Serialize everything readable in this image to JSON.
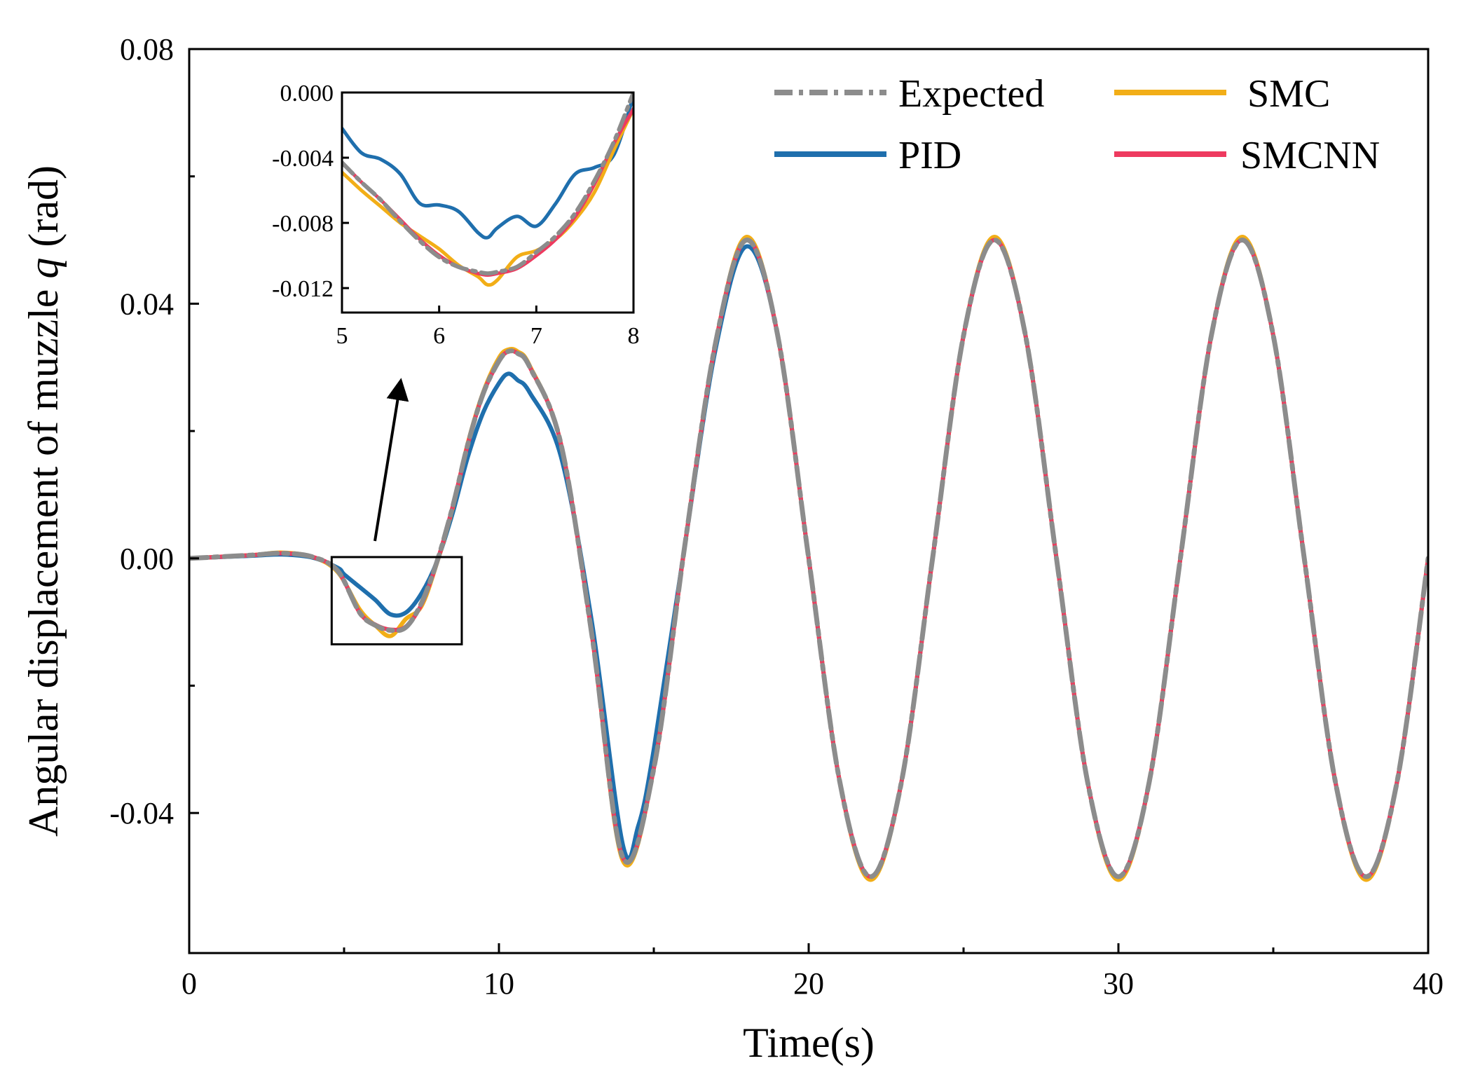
{
  "chart_data": {
    "type": "line",
    "title": "",
    "xlabel": "Time(s)",
    "ylabel": {
      "prefix": "Angular displacement of muzzle ",
      "symbol": "q",
      "suffix": " (rad)"
    },
    "xlim": [
      0,
      40
    ],
    "ylim": [
      -0.062,
      0.08
    ],
    "x_ticks": [
      0,
      10,
      20,
      30,
      40
    ],
    "x_tick_labels": [
      "0",
      "10",
      "20",
      "30",
      "40"
    ],
    "x_minor_ticks": [
      5,
      15,
      25,
      35
    ],
    "y_ticks": [
      -0.04,
      0.0,
      0.04,
      0.08
    ],
    "y_tick_labels": [
      "-0.04",
      "0.00",
      "0.04",
      "0.08"
    ],
    "y_minor_ticks": [
      -0.02,
      0.02,
      0.06
    ],
    "grid": false,
    "legend_position": "top-right",
    "series": [
      {
        "name": "Expected",
        "color": "#8c8c8c",
        "style": "dash-dot",
        "x": [
          0,
          2,
          3,
          4,
          4.8,
          5.5,
          6,
          6.5,
          7,
          7.5,
          8,
          8.5,
          9,
          9.5,
          10,
          10.3,
          10.6,
          11,
          12,
          13,
          14,
          15,
          16,
          17,
          18,
          19,
          20,
          21,
          22,
          23,
          24,
          25,
          26,
          27,
          28,
          29,
          30,
          31,
          32,
          33,
          34,
          35,
          36,
          37,
          38,
          39,
          40
        ],
        "values": [
          0.0,
          0.0005,
          0.0008,
          0.0002,
          -0.002,
          -0.0085,
          -0.0105,
          -0.0113,
          -0.0108,
          -0.007,
          -0.0005,
          0.008,
          0.018,
          0.026,
          0.031,
          0.0325,
          0.0322,
          0.03,
          0.018,
          -0.012,
          -0.047,
          -0.033,
          0.002,
          0.034,
          0.05,
          0.035,
          0.0,
          -0.035,
          -0.05,
          -0.035,
          0.0,
          0.035,
          0.05,
          0.035,
          0.0,
          -0.035,
          -0.05,
          -0.035,
          0.0,
          0.035,
          0.05,
          0.035,
          0.0,
          -0.035,
          -0.05,
          -0.035,
          0.0
        ]
      },
      {
        "name": "SMC",
        "color": "#f2ae17",
        "style": "solid",
        "x": [
          0,
          2,
          3,
          4,
          4.8,
          5.5,
          6,
          6.5,
          7,
          7.5,
          8,
          8.5,
          9,
          9.5,
          10,
          10.3,
          10.6,
          11,
          12,
          13,
          14,
          15,
          16,
          17,
          18,
          19,
          20,
          21,
          22,
          23,
          24,
          25,
          26,
          27,
          28,
          29,
          30,
          31,
          32,
          33,
          34,
          35,
          36,
          37,
          38,
          39,
          40
        ],
        "values": [
          0.0,
          0.0005,
          0.0009,
          0.0002,
          -0.0022,
          -0.008,
          -0.0105,
          -0.0122,
          -0.0095,
          -0.0075,
          -0.0007,
          0.0078,
          0.0182,
          0.0262,
          0.0315,
          0.0328,
          0.0325,
          0.0302,
          0.018,
          -0.012,
          -0.0475,
          -0.033,
          0.002,
          0.034,
          0.0505,
          0.035,
          0.0,
          -0.035,
          -0.0505,
          -0.035,
          0.0,
          0.035,
          0.0505,
          0.035,
          0.0,
          -0.035,
          -0.0505,
          -0.035,
          0.0,
          0.035,
          0.0505,
          0.035,
          0.0,
          -0.035,
          -0.0505,
          -0.035,
          0.0
        ]
      },
      {
        "name": "PID",
        "color": "#1f6fad",
        "style": "solid",
        "x": [
          0,
          2,
          3,
          4,
          4.8,
          5,
          5.5,
          6,
          6.5,
          7,
          7.5,
          8,
          8.5,
          9,
          9.5,
          10,
          10.3,
          10.6,
          11,
          12,
          13,
          14,
          14.5,
          15,
          16,
          17,
          18,
          19,
          20,
          21,
          22,
          23,
          24,
          25,
          26,
          27,
          28,
          29,
          30,
          31,
          32,
          33,
          34,
          35,
          36,
          37,
          38,
          39,
          40
        ],
        "values": [
          0.0,
          0.0004,
          0.0006,
          0.0001,
          -0.0015,
          -0.0025,
          -0.0045,
          -0.0065,
          -0.0088,
          -0.0085,
          -0.0055,
          -0.0005,
          0.007,
          0.016,
          0.023,
          0.0275,
          0.029,
          0.028,
          0.026,
          0.016,
          -0.01,
          -0.045,
          -0.042,
          -0.03,
          0.002,
          0.033,
          0.049,
          0.035,
          0.0,
          -0.035,
          -0.05,
          -0.035,
          0.0,
          0.035,
          0.05,
          0.035,
          0.0,
          -0.035,
          -0.05,
          -0.035,
          0.0,
          0.035,
          0.05,
          0.035,
          0.0,
          -0.035,
          -0.05,
          -0.035,
          0.0
        ]
      },
      {
        "name": "SMCNN",
        "color": "#ee3a5f",
        "style": "solid",
        "x": [
          0,
          2,
          3,
          4,
          4.8,
          5.5,
          6,
          6.5,
          7,
          7.5,
          8,
          8.5,
          9,
          9.5,
          10,
          10.3,
          10.6,
          11,
          12,
          13,
          14,
          15,
          16,
          17,
          18,
          19,
          20,
          21,
          22,
          23,
          24,
          25,
          26,
          27,
          28,
          29,
          30,
          31,
          32,
          33,
          34,
          35,
          36,
          37,
          38,
          39,
          40
        ],
        "values": [
          0.0,
          0.0005,
          0.0008,
          0.0002,
          -0.002,
          -0.0085,
          -0.0104,
          -0.0112,
          -0.0107,
          -0.0072,
          -0.0006,
          0.008,
          0.018,
          0.026,
          0.031,
          0.0325,
          0.0322,
          0.03,
          0.018,
          -0.012,
          -0.047,
          -0.033,
          0.002,
          0.034,
          0.05,
          0.035,
          0.0,
          -0.035,
          -0.05,
          -0.035,
          0.0,
          0.035,
          0.05,
          0.035,
          0.0,
          -0.035,
          -0.05,
          -0.035,
          0.0,
          0.035,
          0.05,
          0.035,
          0.0,
          -0.035,
          -0.05,
          -0.035,
          0.0
        ]
      }
    ],
    "zoom_region": {
      "x": [
        4.6,
        8.8
      ],
      "y": [
        -0.0135,
        0.0002
      ]
    },
    "inset": {
      "xlim": [
        5,
        8
      ],
      "ylim": [
        -0.0135,
        0.0
      ],
      "x_ticks": [
        5,
        6,
        7,
        8
      ],
      "x_tick_labels": [
        "5",
        "6",
        "7",
        "8"
      ],
      "y_ticks": [
        0.0,
        -0.004,
        -0.008,
        -0.012
      ],
      "y_tick_labels": [
        "0.000",
        "-0.004",
        "-0.008",
        "-0.012"
      ],
      "series": [
        {
          "name": "PID",
          "color": "#1f6fad",
          "x": [
            5,
            5.2,
            5.4,
            5.6,
            5.8,
            6.0,
            6.2,
            6.4,
            6.5,
            6.6,
            6.8,
            7.0,
            7.2,
            7.4,
            7.6,
            7.8,
            8.0
          ],
          "values": [
            -0.0022,
            -0.0037,
            -0.0041,
            -0.005,
            -0.0068,
            -0.0069,
            -0.0073,
            -0.0086,
            -0.0089,
            -0.0083,
            -0.0076,
            -0.0082,
            -0.0068,
            -0.005,
            -0.0046,
            -0.0038,
            -0.0002
          ]
        },
        {
          "name": "SMC",
          "color": "#f2ae17",
          "x": [
            5,
            5.2,
            5.4,
            5.6,
            5.8,
            6.0,
            6.2,
            6.4,
            6.5,
            6.6,
            6.8,
            7.0,
            7.2,
            7.4,
            7.6,
            7.8,
            8.0
          ],
          "values": [
            -0.0049,
            -0.006,
            -0.007,
            -0.008,
            -0.0088,
            -0.0096,
            -0.0106,
            -0.0113,
            -0.0118,
            -0.0115,
            -0.0101,
            -0.0097,
            -0.009,
            -0.0078,
            -0.0061,
            -0.0035,
            -0.001
          ]
        },
        {
          "name": "SMCNN",
          "color": "#ee3a5f",
          "x": [
            5,
            5.2,
            5.4,
            5.6,
            5.8,
            6.0,
            6.2,
            6.4,
            6.5,
            6.6,
            6.8,
            7.0,
            7.2,
            7.4,
            7.6,
            7.8,
            8.0
          ],
          "values": [
            -0.0043,
            -0.0055,
            -0.0066,
            -0.0078,
            -0.009,
            -0.01,
            -0.0107,
            -0.0111,
            -0.0112,
            -0.0111,
            -0.0108,
            -0.01,
            -0.009,
            -0.0076,
            -0.0056,
            -0.0031,
            -0.001
          ]
        },
        {
          "name": "Expected",
          "color": "#8c8c8c",
          "x": [
            5,
            5.2,
            5.4,
            5.6,
            5.8,
            6.0,
            6.2,
            6.4,
            6.5,
            6.6,
            6.8,
            7.0,
            7.2,
            7.4,
            7.6,
            7.8,
            8.0
          ],
          "values": [
            -0.0043,
            -0.0055,
            -0.0066,
            -0.0079,
            -0.0091,
            -0.0101,
            -0.0107,
            -0.011,
            -0.0111,
            -0.011,
            -0.0107,
            -0.0098,
            -0.0088,
            -0.0074,
            -0.0054,
            -0.003,
            0.0
          ]
        }
      ]
    }
  }
}
